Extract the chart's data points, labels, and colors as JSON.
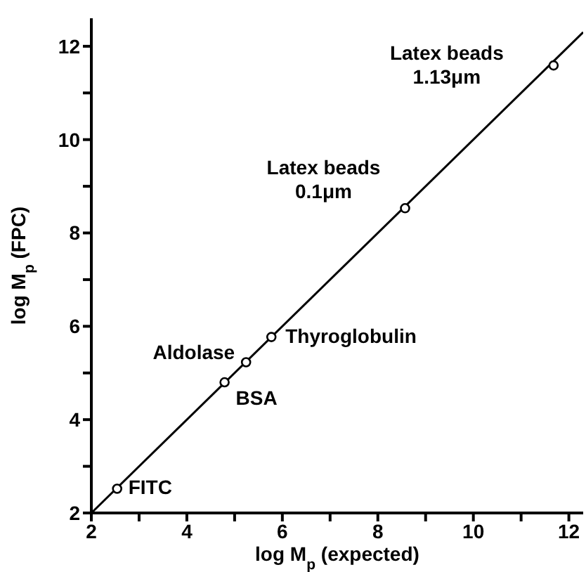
{
  "chart_data": {
    "type": "scatter",
    "xlabel": "log M$_{p}$ (expected)",
    "ylabel": "log M$_{p}$ (FPC)",
    "xlim": [
      2,
      12.3
    ],
    "ylim": [
      2,
      12.6
    ],
    "xticks": [
      2,
      {
        "value": 3,
        "label": null
      },
      4,
      {
        "value": 5,
        "label": null
      },
      6,
      {
        "value": 7,
        "label": null
      },
      8,
      {
        "value": 9,
        "label": null
      },
      10,
      {
        "value": 11,
        "label": null
      },
      12
    ],
    "yticks": [
      2,
      {
        "value": 3,
        "label": null
      },
      4,
      {
        "value": 5,
        "label": null
      },
      6,
      {
        "value": 7,
        "label": null
      },
      8,
      {
        "value": 9,
        "label": null
      },
      10,
      {
        "value": 11,
        "label": null
      },
      12
    ],
    "grid": false,
    "marker": "circle",
    "series": [
      {
        "color": "#000000",
        "x": [
          2.54,
          4.79,
          5.24,
          5.77,
          8.57,
          11.68
        ],
        "values": [
          2.52,
          4.8,
          5.23,
          5.77,
          8.53,
          11.59
        ]
      },
      {
        "type": "line",
        "color": "#000000",
        "marker": "none",
        "line_style": "solid",
        "x": [
          2,
          12.3
        ],
        "values": [
          2,
          12.3
        ]
      }
    ],
    "annotations": [
      {
        "text": "FITC",
        "x": 2.54,
        "y": 2.52
      },
      {
        "text": "BSA",
        "x": 4.79,
        "y": 4.8
      },
      {
        "text": "Aldolase",
        "x": 5.24,
        "y": 5.23
      },
      {
        "text": "Thyroglobulin",
        "x": 5.77,
        "y": 5.77
      },
      {
        "text": "Latex beads\n0.1μm",
        "x": 8.57,
        "y": 8.53
      },
      {
        "text": "Latex beads\n1.13μm",
        "x": 11.68,
        "y": 11.59
      }
    ]
  }
}
